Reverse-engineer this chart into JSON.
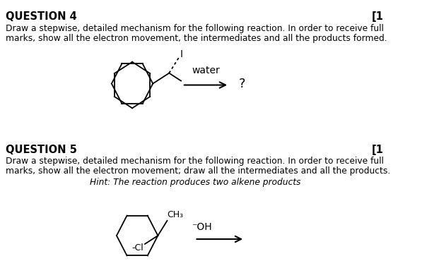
{
  "background_color": "#ffffff",
  "q4_title": "QUESTION 4",
  "q4_bracket": "[1",
  "q4_text1": "Draw a stepwise, detailed mechanism for the following reaction. In order to receive full",
  "q4_text2": "marks, show all the electron movement, the intermediates and all the products formed.",
  "q4_water": "water",
  "q4_question_mark": "?",
  "q5_title": "QUESTION 5",
  "q5_bracket": "[1",
  "q5_text1": "Draw a stepwise, detailed mechanism for the following reaction. In order to receive full",
  "q5_text2": "marks, show all the electron movement; draw all the intermediates and all the products.",
  "q5_hint": "Hint: The reaction produces two alkene products",
  "q5_ch3": "CH₃",
  "q5_cl": "-Cl",
  "q5_oh": "⁻OH"
}
